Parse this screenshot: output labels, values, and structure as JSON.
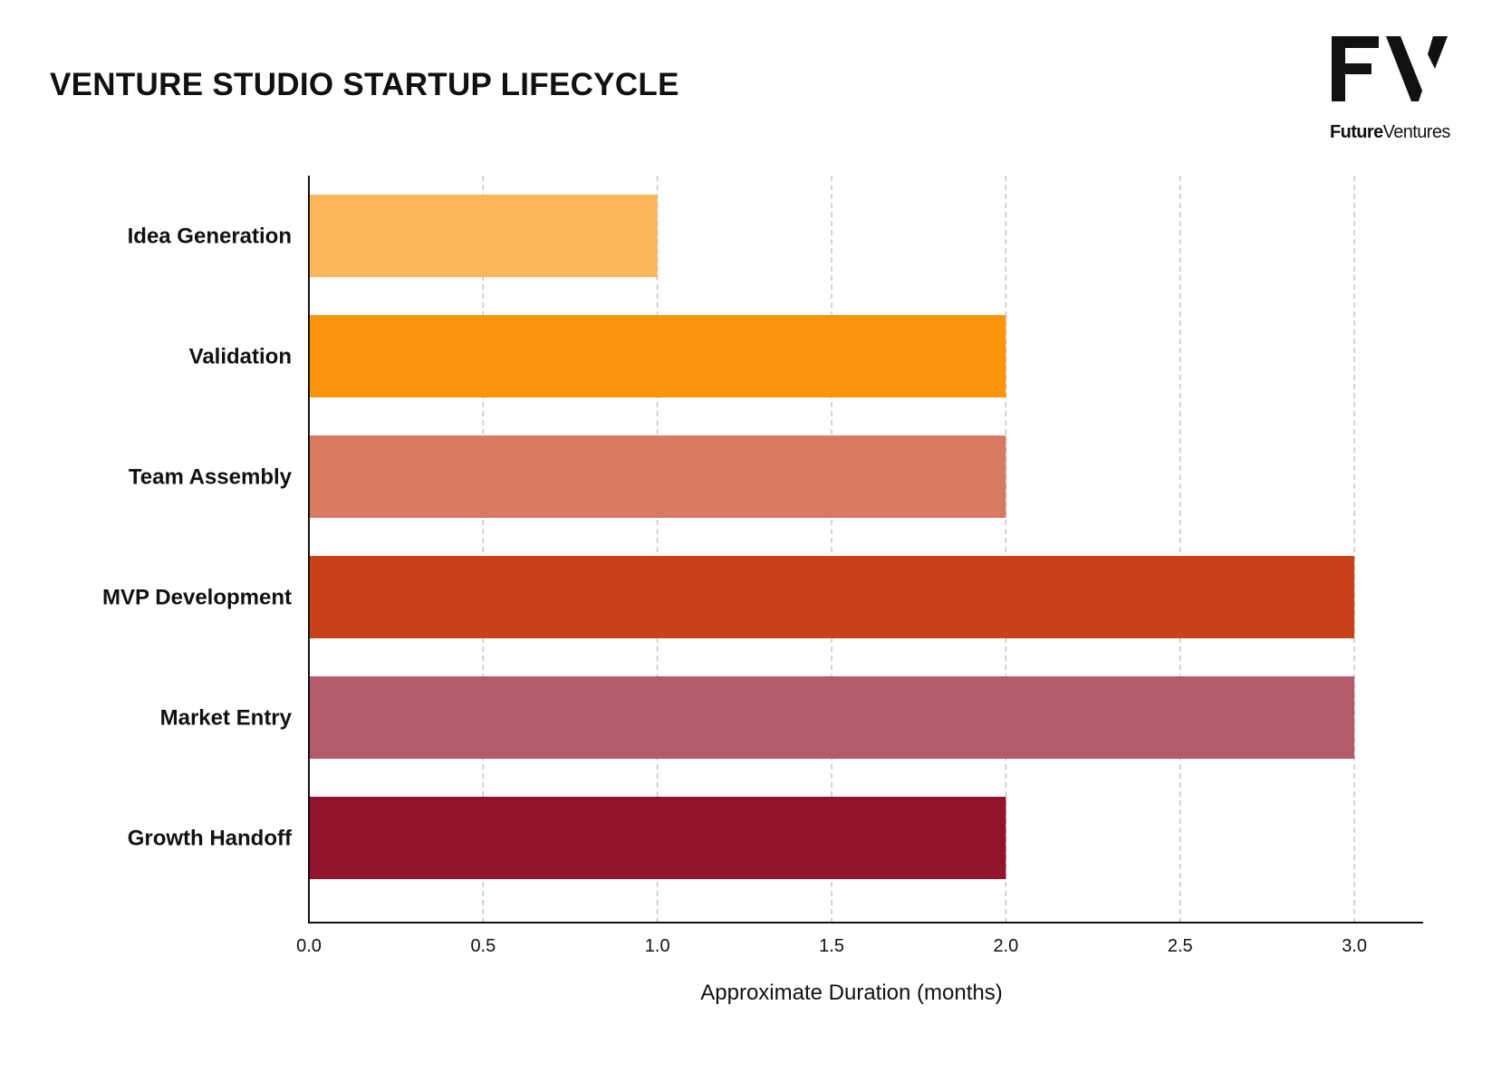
{
  "header": {
    "title": "VENTURE STUDIO STARTUP LIFECYCLE"
  },
  "logo": {
    "mark": "FV",
    "name_strong": "Future",
    "name_light": "Ventures"
  },
  "chart_data": {
    "type": "bar",
    "orientation": "horizontal",
    "title": "VENTURE STUDIO STARTUP LIFECYCLE",
    "categories": [
      "Idea Generation",
      "Validation",
      "Team Assembly",
      "MVP Development",
      "Market Entry",
      "Growth Handoff"
    ],
    "values": [
      1,
      2,
      2,
      3,
      3,
      2
    ],
    "colors": [
      "#FDB55A",
      "#FC940C",
      "#D97A60",
      "#C84118",
      "#B25C6B",
      "#92132D"
    ],
    "xlabel": "Approximate Duration (months)",
    "ylabel": "",
    "xlim": [
      0,
      3.2
    ],
    "xticks": [
      "0.0",
      "0.5",
      "1.0",
      "1.5",
      "2.0",
      "2.5",
      "3.0"
    ],
    "grid": "vertical-dashed",
    "legend": "none"
  }
}
